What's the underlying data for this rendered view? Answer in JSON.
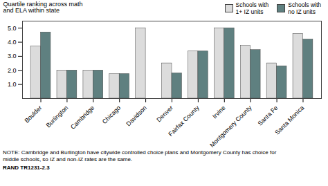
{
  "chart_data": {
    "type": "bar",
    "categories": [
      "Boulder",
      "Burlington",
      "Cambridge",
      "Chicago",
      "Davidson",
      "Denver",
      "Fairfax County",
      "Irvine",
      "Montgomery County",
      "Santa Fe",
      "Santa Monica"
    ],
    "series": [
      {
        "name": "Schools with\n1+ IZ units",
        "color": "#dcdcdc",
        "values": [
          3.7,
          2.0,
          2.0,
          1.75,
          5.0,
          2.5,
          3.35,
          5.0,
          3.75,
          2.5,
          4.6
        ]
      },
      {
        "name": "Schools with\nno IZ units",
        "color": "#5f8080",
        "values": [
          4.7,
          2.0,
          2.0,
          1.75,
          null,
          1.8,
          3.35,
          5.0,
          3.45,
          2.3,
          4.2
        ]
      }
    ],
    "ylabel": "Quartile ranking across math\nand ELA within state",
    "ylim": [
      0,
      5.5
    ],
    "yticks": [
      1,
      2,
      3,
      4,
      5
    ],
    "annotations": [
      "NOTE: Cambridge and Burlington have citywide controlled choice plans and Montgomery County has choice for\nmiddle schools, so IZ and non-IZ rates are the same.",
      "RAND TR1231-2.3"
    ]
  }
}
